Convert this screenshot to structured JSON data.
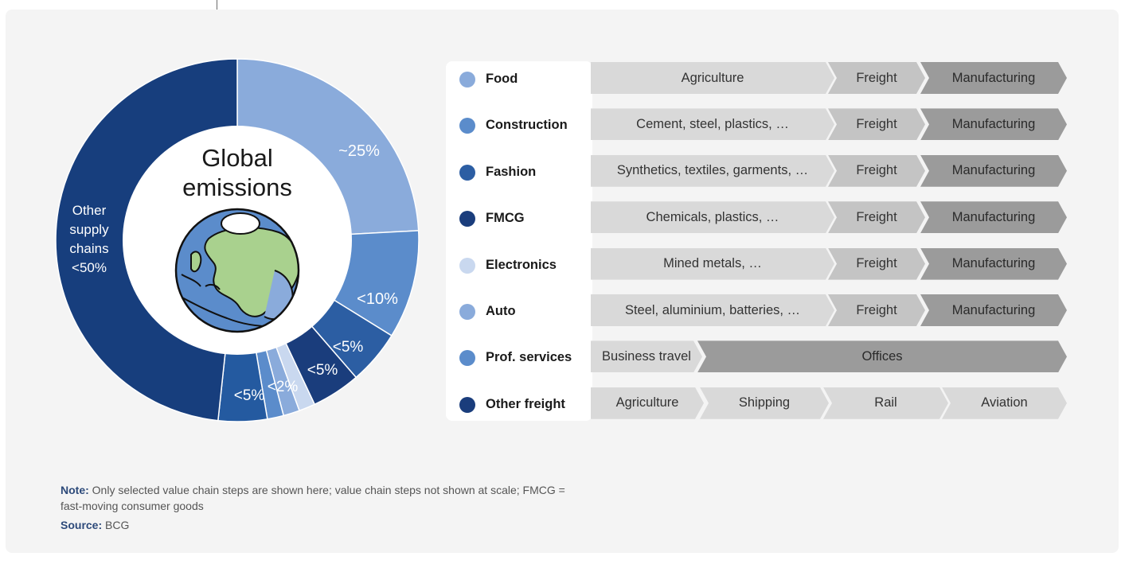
{
  "chart_data": {
    "type": "pie",
    "center_title": [
      "Global",
      "emissions"
    ],
    "slices": [
      {
        "label": "~25%",
        "value": 25,
        "color": "#8aabdb"
      },
      {
        "label": "<10%",
        "value": 10,
        "color": "#5b8ccb"
      },
      {
        "label": "<5%",
        "value": 5,
        "color": "#2c5ea3"
      },
      {
        "label": "<5%",
        "value": 4.5,
        "color": "#1a3d7c"
      },
      {
        "label": "",
        "value": 1.5,
        "color": "#c9d8ef"
      },
      {
        "label": "<2%",
        "value": 1.5,
        "color": "#8aabdb"
      },
      {
        "label": "",
        "value": 1.5,
        "color": "#5b8ccb"
      },
      {
        "label": "<5%",
        "value": 4.5,
        "color": "#245aa0"
      },
      {
        "label": "Other supply chains <50%",
        "value": 50,
        "color": "#173e7d"
      }
    ],
    "slice_label_lines": {
      "other": [
        "Other",
        "supply",
        "chains",
        "<50%"
      ]
    }
  },
  "categories": [
    {
      "name": "Food",
      "color": "#8aabdb",
      "steps": [
        {
          "label": "Agriculture",
          "w": 0
        },
        {
          "label": "Freight"
        },
        {
          "label": "Manufacturing"
        }
      ]
    },
    {
      "name": "Construction",
      "color": "#5b8ccb",
      "steps": [
        {
          "label": "Cement, steel, plastics, …"
        },
        {
          "label": "Freight"
        },
        {
          "label": "Manufacturing"
        }
      ]
    },
    {
      "name": "Fashion",
      "color": "#2c5ea3",
      "steps": [
        {
          "label": "Synthetics, textiles, garments, …"
        },
        {
          "label": "Freight"
        },
        {
          "label": "Manufacturing"
        }
      ]
    },
    {
      "name": "FMCG",
      "color": "#1a3d7c",
      "steps": [
        {
          "label": "Chemicals, plastics, …"
        },
        {
          "label": "Freight"
        },
        {
          "label": "Manufacturing"
        }
      ]
    },
    {
      "name": "Electronics",
      "color": "#c9d8ef",
      "steps": [
        {
          "label": "Mined metals, …"
        },
        {
          "label": "Freight"
        },
        {
          "label": "Manufacturing"
        }
      ]
    },
    {
      "name": "Auto",
      "color": "#8aabdb",
      "steps": [
        {
          "label": "Steel, aluminium, batteries, …"
        },
        {
          "label": "Freight"
        },
        {
          "label": "Manufacturing"
        }
      ]
    },
    {
      "name": "Prof. services",
      "color": "#5b8ccb",
      "steps": [
        {
          "label": "Business travel"
        },
        {
          "label": "Offices"
        }
      ]
    },
    {
      "name": "Other freight",
      "color": "#1a3d7c",
      "steps": [
        {
          "label": "Agriculture"
        },
        {
          "label": "Shipping"
        },
        {
          "label": "Rail"
        },
        {
          "label": "Aviation"
        }
      ]
    }
  ],
  "note": {
    "label": "Note:",
    "text": " Only selected value chain steps are shown here; value chain steps not shown at scale; FMCG = fast-moving consumer goods"
  },
  "source": {
    "label": "Source:",
    "text": " BCG"
  }
}
